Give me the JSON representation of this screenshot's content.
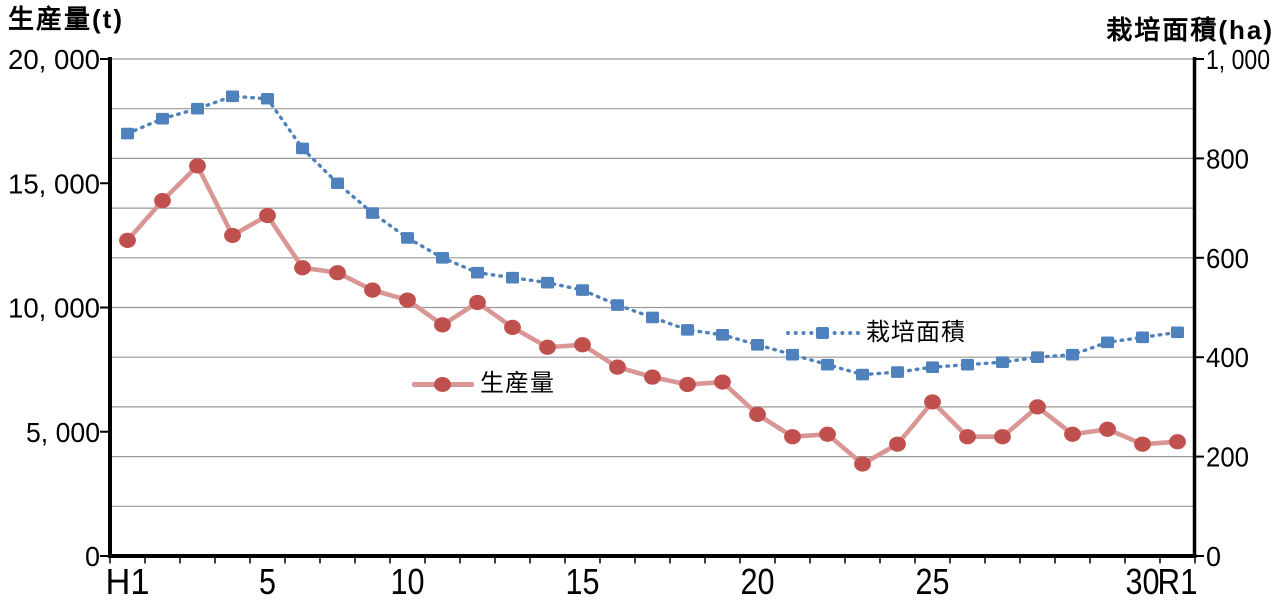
{
  "chart_data": {
    "type": "line",
    "title_left": "生産量(t)",
    "title_right": "栽培面積(ha)",
    "x_axis": {
      "categories_count": 31,
      "tick_labels": [
        {
          "index": 0,
          "label": "H1"
        },
        {
          "index": 4,
          "label": "5"
        },
        {
          "index": 8,
          "label": "10"
        },
        {
          "index": 13,
          "label": "15"
        },
        {
          "index": 18,
          "label": "20"
        },
        {
          "index": 23,
          "label": "25"
        },
        {
          "index": 29,
          "label": "30"
        },
        {
          "index": 30,
          "label": "R1"
        }
      ]
    },
    "left_axis": {
      "min": 0,
      "max": 20000,
      "ticks": [
        {
          "value": 0,
          "label": "0"
        },
        {
          "value": 5000,
          "label": "5, 000"
        },
        {
          "value": 10000,
          "label": "10, 000"
        },
        {
          "value": 15000,
          "label": "15, 000"
        },
        {
          "value": 20000,
          "label": "20, 000"
        }
      ]
    },
    "right_axis": {
      "min": 0,
      "max": 1000,
      "ticks": [
        {
          "value": 0,
          "label": "0"
        },
        {
          "value": 200,
          "label": "200"
        },
        {
          "value": 400,
          "label": "400"
        },
        {
          "value": 600,
          "label": "600"
        },
        {
          "value": 800,
          "label": "800"
        },
        {
          "value": 1000,
          "label": "1, 000"
        }
      ]
    },
    "gridlines": {
      "axis": "right",
      "interval": 100,
      "color": "#999999"
    },
    "series": [
      {
        "name": "生産量",
        "axis": "left",
        "marker": "circle",
        "line_style": "solid",
        "line_color": "#d99694",
        "marker_color": "#c0504d",
        "values": [
          12700,
          14300,
          15700,
          12900,
          13700,
          11600,
          11400,
          10700,
          10300,
          9300,
          10200,
          9200,
          8400,
          8500,
          7600,
          7200,
          6900,
          7000,
          5700,
          4800,
          4900,
          3700,
          4500,
          6200,
          4800,
          4800,
          6000,
          4900,
          5100,
          4500,
          4600
        ]
      },
      {
        "name": "栽培面積",
        "axis": "right",
        "marker": "square",
        "line_style": "dotted",
        "line_color": "#4f81bd",
        "marker_color": "#4f81bd",
        "values": [
          850,
          880,
          900,
          925,
          920,
          820,
          750,
          690,
          640,
          600,
          570,
          560,
          550,
          535,
          505,
          480,
          455,
          445,
          425,
          405,
          385,
          365,
          370,
          380,
          385,
          390,
          400,
          405,
          430,
          440,
          450
        ]
      }
    ]
  }
}
